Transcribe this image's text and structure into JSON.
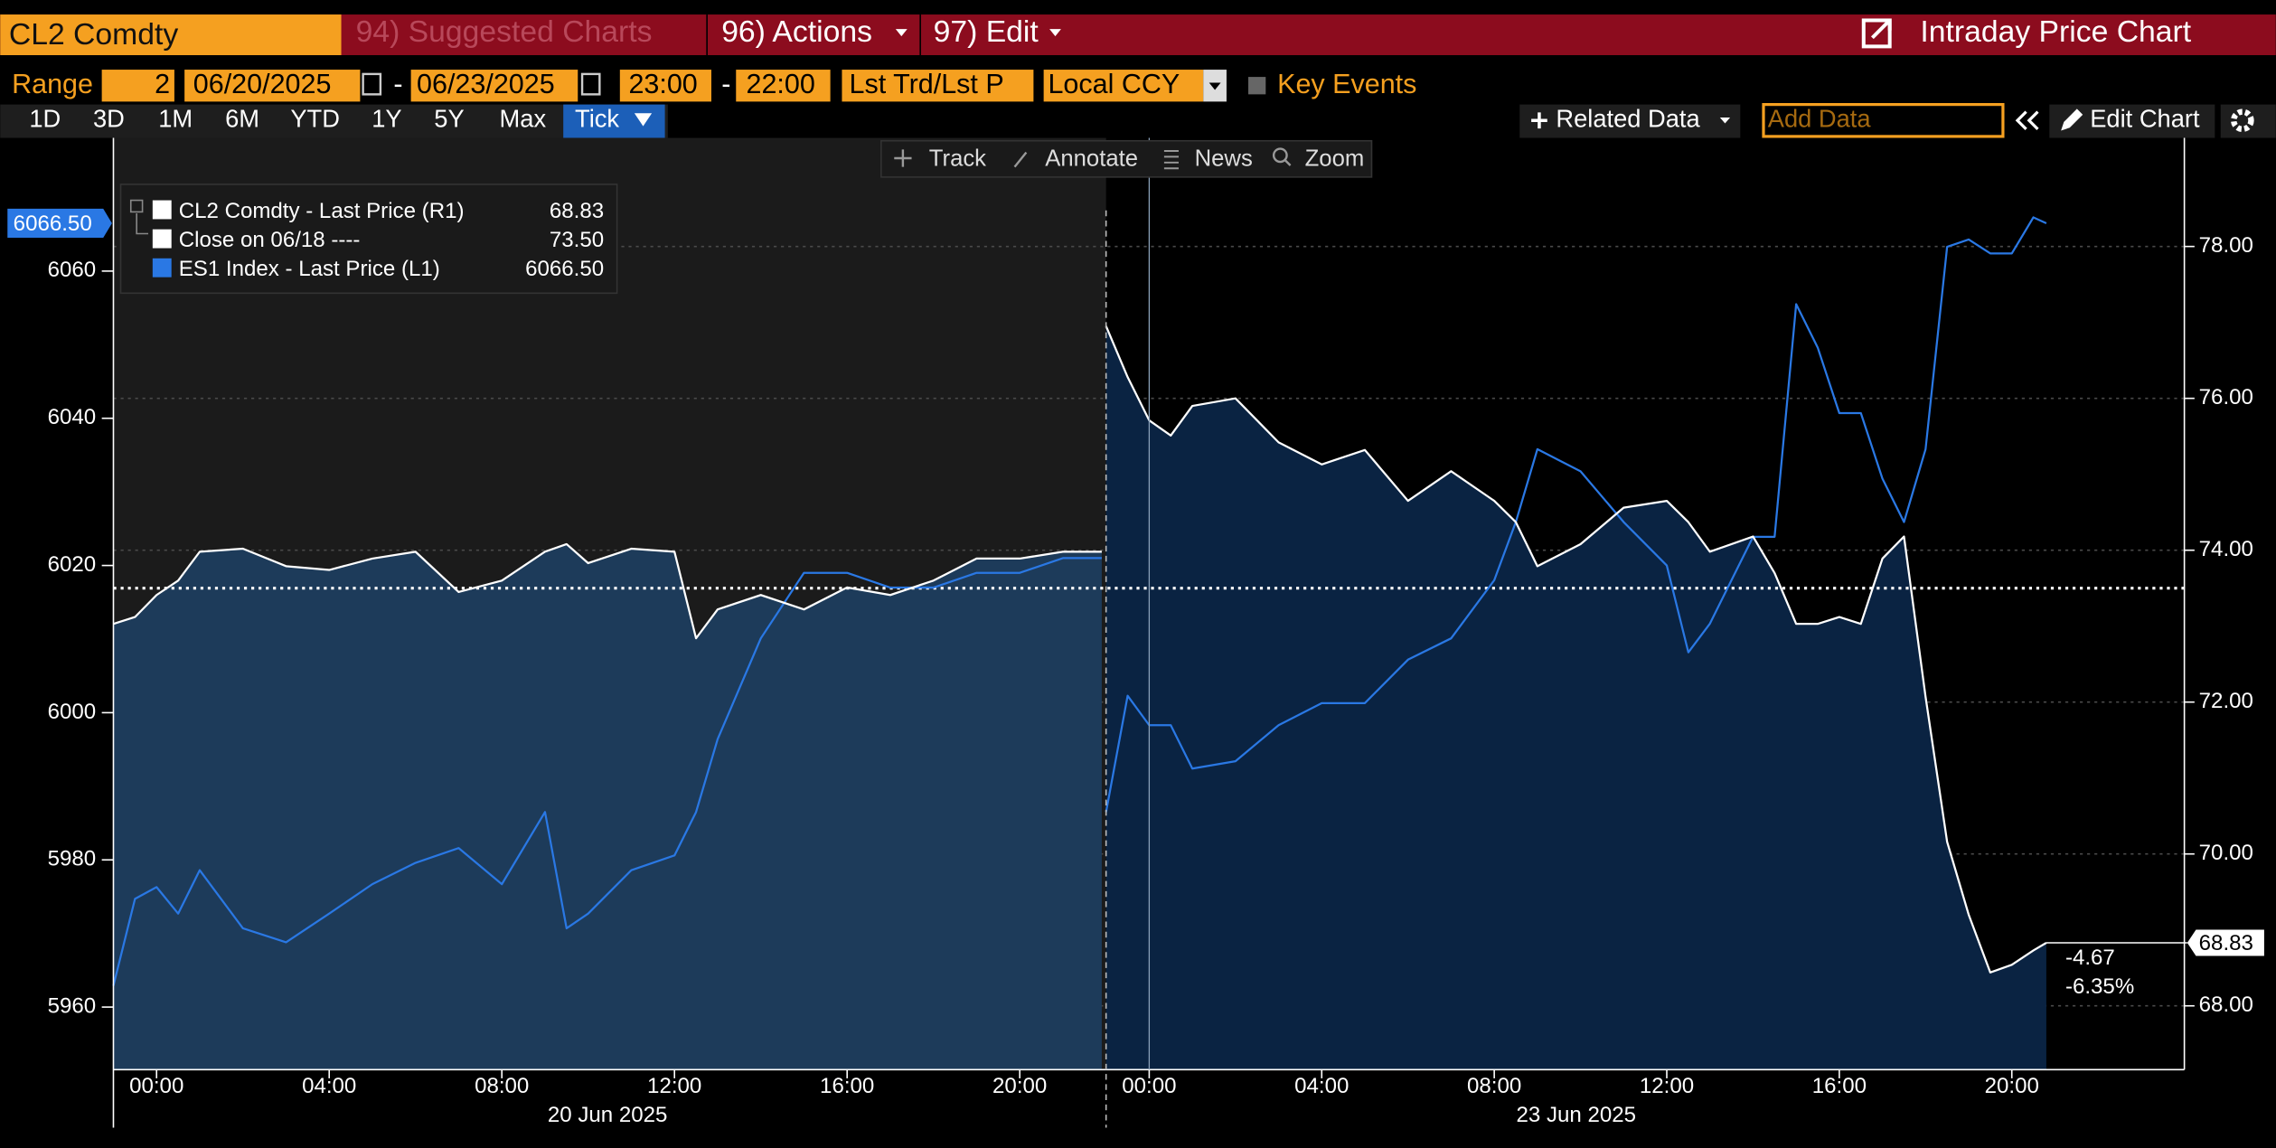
{
  "header": {
    "security": "CL2 Comdty",
    "menu": [
      "94) Suggested Charts",
      "96) Actions",
      "97) Edit"
    ],
    "title": "Intraday Price Chart"
  },
  "range_bar": {
    "label": "Range",
    "count": "2",
    "start_date": "06/20/2025",
    "separator": "-",
    "end_date": "06/23/2025",
    "start_time": "23:00",
    "end_time": "22:00",
    "price_field": "Lst Trd/Lst P",
    "currency": "Local CCY",
    "key_events": "Key Events"
  },
  "periods": [
    "1D",
    "3D",
    "1M",
    "6M",
    "YTD",
    "1Y",
    "5Y",
    "Max",
    "Tick"
  ],
  "toolbar": {
    "related": "Related Data",
    "add_data": "Add Data",
    "edit_chart": "Edit Chart"
  },
  "chart_tools": [
    "Track",
    "Annotate",
    "News",
    "Zoom"
  ],
  "chart_data": {
    "type": "line",
    "grid": true,
    "ylim": [
      5951.5,
      6078.1
    ],
    "yticks": [
      5960,
      5980,
      6000,
      6020,
      6040,
      6060
    ],
    "y2lim": [
      67.16,
      79.43
    ],
    "y2ticks": [
      {
        "value": 68,
        "label": "68.00"
      },
      {
        "value": 70,
        "label": "70.00"
      },
      {
        "value": 72,
        "label": "72.00"
      },
      {
        "value": 74,
        "label": "74.00"
      },
      {
        "value": 76,
        "label": "76.00"
      },
      {
        "value": 78,
        "label": "78.00"
      }
    ],
    "sessions": [
      {
        "label": "20 Jun 2025",
        "xlim": [
          -1,
          22
        ],
        "xticks": [
          {
            "value": 0,
            "label": "00:00"
          },
          {
            "value": 4,
            "label": "04:00"
          },
          {
            "value": 8,
            "label": "08:00"
          },
          {
            "value": 12,
            "label": "12:00"
          },
          {
            "value": 16,
            "label": "16:00"
          },
          {
            "value": 20,
            "label": "20:00"
          }
        ],
        "x": [
          -1,
          -0.5,
          0,
          0.5,
          1,
          2,
          3,
          4,
          5,
          6,
          7,
          8,
          9,
          9.5,
          10,
          11,
          12,
          12.5,
          13,
          14,
          15,
          16,
          17,
          18,
          19,
          20,
          21,
          21.9
        ]
      },
      {
        "label": "23 Jun 2025",
        "xlim": [
          -1,
          24
        ],
        "xticks": [
          {
            "value": 0,
            "label": "00:00"
          },
          {
            "value": 4,
            "label": "04:00"
          },
          {
            "value": 8,
            "label": "08:00"
          },
          {
            "value": 12,
            "label": "12:00"
          },
          {
            "value": 16,
            "label": "16:00"
          },
          {
            "value": 20,
            "label": "20:00"
          }
        ],
        "x": [
          -1,
          -0.5,
          0,
          0.5,
          1,
          2,
          3,
          4,
          5,
          6,
          7,
          8,
          8.5,
          9,
          10,
          11,
          12,
          12.5,
          13,
          14,
          14.5,
          15,
          15.5,
          16,
          16.5,
          17,
          17.5,
          18,
          18.5,
          19,
          19.5,
          20,
          20.5,
          20.8
        ]
      }
    ],
    "series": [
      {
        "name": "CL2 Comdty - Last Price (R1)",
        "color": "#ffffff",
        "axis": "y2",
        "fill": [
          "#1d3b5a",
          "#0a2342"
        ],
        "last": 68.83,
        "values": [
          [
            73.03,
            73.12,
            73.41,
            73.6,
            73.98,
            74.02,
            73.79,
            73.74,
            73.89,
            73.98,
            73.45,
            73.6,
            73.98,
            74.08,
            73.83,
            74.02,
            73.98,
            72.84,
            73.22,
            73.41,
            73.22,
            73.51,
            73.41,
            73.6,
            73.89,
            73.89,
            73.98,
            73.98
          ],
          [
            76.95,
            76.28,
            75.71,
            75.51,
            75.9,
            76.0,
            75.42,
            75.13,
            75.32,
            74.65,
            75.04,
            74.65,
            74.37,
            73.79,
            74.08,
            74.56,
            74.65,
            74.37,
            73.98,
            74.18,
            73.7,
            73.03,
            73.03,
            73.12,
            73.03,
            73.89,
            74.18,
            72.07,
            70.16,
            69.2,
            68.44,
            68.54,
            68.73,
            68.83
          ]
        ]
      },
      {
        "name": "ES1 Index - Last Price (L1)",
        "color": "#2a78e4",
        "axis": "y",
        "last": 6066.5,
        "last_label": "6066.50",
        "values": [
          [
            5962.9,
            5974.7,
            5976.3,
            5972.7,
            5978.6,
            5970.7,
            5968.8,
            5972.7,
            5976.7,
            5979.6,
            5981.6,
            5976.7,
            5986.5,
            5970.7,
            5972.7,
            5978.6,
            5980.6,
            5986.5,
            5996.4,
            6010.1,
            6019.0,
            6019.0,
            6017.0,
            6017.0,
            6019.0,
            6019.0,
            6021.0,
            6021.0
          ],
          [
            5986.5,
            6002.3,
            5998.3,
            5998.3,
            5992.4,
            5993.4,
            5998.3,
            6001.3,
            6001.3,
            6007.2,
            6010.1,
            6018.0,
            6025.9,
            6035.8,
            6032.8,
            6025.9,
            6020.0,
            6008.2,
            6012.1,
            6023.9,
            6023.9,
            6055.5,
            6049.6,
            6040.7,
            6040.7,
            6031.8,
            6025.9,
            6035.8,
            6063.3,
            6064.3,
            6062.4,
            6062.4,
            6067.3,
            6066.5
          ]
        ]
      }
    ],
    "reference": {
      "name": "Close on 06/18 ----",
      "value": 73.5,
      "label": "73.50",
      "axis": "y2",
      "color": "#ffffff"
    },
    "annotations": {
      "change": -4.67,
      "change_pct_label": "-6.35%"
    }
  }
}
